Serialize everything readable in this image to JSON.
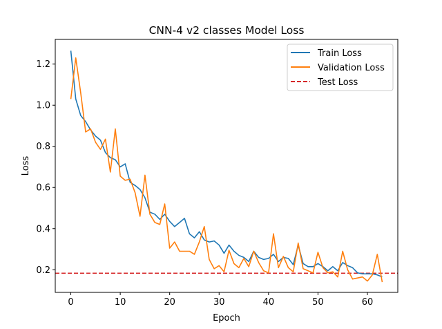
{
  "chart_data": {
    "type": "line",
    "title": "CNN-4 v2 classes Model Loss",
    "xlabel": "Epoch",
    "ylabel": "Loss",
    "xlim": [
      -3.15,
      66.15
    ],
    "ylim": [
      0.09,
      1.32
    ],
    "xticks": [
      0,
      10,
      20,
      30,
      40,
      50,
      60
    ],
    "yticks": [
      0.2,
      0.4,
      0.6,
      0.8,
      1.0,
      1.2
    ],
    "ytick_labels": [
      "0.2",
      "0.4",
      "0.6",
      "0.8",
      "1.0",
      "1.2"
    ],
    "grid": false,
    "legend_position": "top-right",
    "x": [
      0,
      1,
      2,
      3,
      4,
      5,
      6,
      7,
      8,
      9,
      10,
      11,
      12,
      13,
      14,
      15,
      16,
      17,
      18,
      19,
      20,
      21,
      22,
      23,
      24,
      25,
      26,
      27,
      28,
      29,
      30,
      31,
      32,
      33,
      34,
      35,
      36,
      37,
      38,
      39,
      40,
      41,
      42,
      43,
      44,
      45,
      46,
      47,
      48,
      49,
      50,
      51,
      52,
      53,
      54,
      55,
      56,
      57,
      58,
      59,
      60,
      61,
      62,
      63
    ],
    "series": [
      {
        "name": "Train Loss",
        "color": "#1f77b4",
        "style": "solid",
        "values": [
          1.265,
          1.03,
          0.95,
          0.92,
          0.88,
          0.85,
          0.83,
          0.77,
          0.745,
          0.735,
          0.7,
          0.715,
          0.625,
          0.61,
          0.59,
          0.55,
          0.48,
          0.47,
          0.445,
          0.47,
          0.435,
          0.41,
          0.43,
          0.45,
          0.375,
          0.355,
          0.385,
          0.345,
          0.335,
          0.34,
          0.32,
          0.28,
          0.32,
          0.29,
          0.27,
          0.26,
          0.24,
          0.29,
          0.26,
          0.25,
          0.255,
          0.275,
          0.24,
          0.26,
          0.255,
          0.225,
          0.32,
          0.23,
          0.215,
          0.215,
          0.23,
          0.215,
          0.195,
          0.215,
          0.195,
          0.235,
          0.22,
          0.21,
          0.185,
          0.18,
          0.18,
          0.18,
          0.175,
          0.165
        ]
      },
      {
        "name": "Validation Loss",
        "color": "#ff7f0e",
        "style": "solid",
        "values": [
          1.03,
          1.23,
          1.06,
          0.87,
          0.885,
          0.82,
          0.785,
          0.835,
          0.675,
          0.885,
          0.655,
          0.635,
          0.64,
          0.575,
          0.46,
          0.66,
          0.47,
          0.43,
          0.42,
          0.52,
          0.305,
          0.335,
          0.29,
          0.29,
          0.29,
          0.275,
          0.335,
          0.41,
          0.25,
          0.205,
          0.22,
          0.19,
          0.295,
          0.23,
          0.21,
          0.255,
          0.215,
          0.29,
          0.235,
          0.195,
          0.185,
          0.375,
          0.21,
          0.265,
          0.21,
          0.19,
          0.33,
          0.205,
          0.195,
          0.185,
          0.285,
          0.21,
          0.185,
          0.19,
          0.165,
          0.29,
          0.2,
          0.155,
          0.16,
          0.165,
          0.145,
          0.175,
          0.275,
          0.14
        ]
      }
    ],
    "hlines": [
      {
        "name": "Test Loss",
        "value": 0.183,
        "color": "#d62728",
        "style": "dashed"
      }
    ]
  }
}
